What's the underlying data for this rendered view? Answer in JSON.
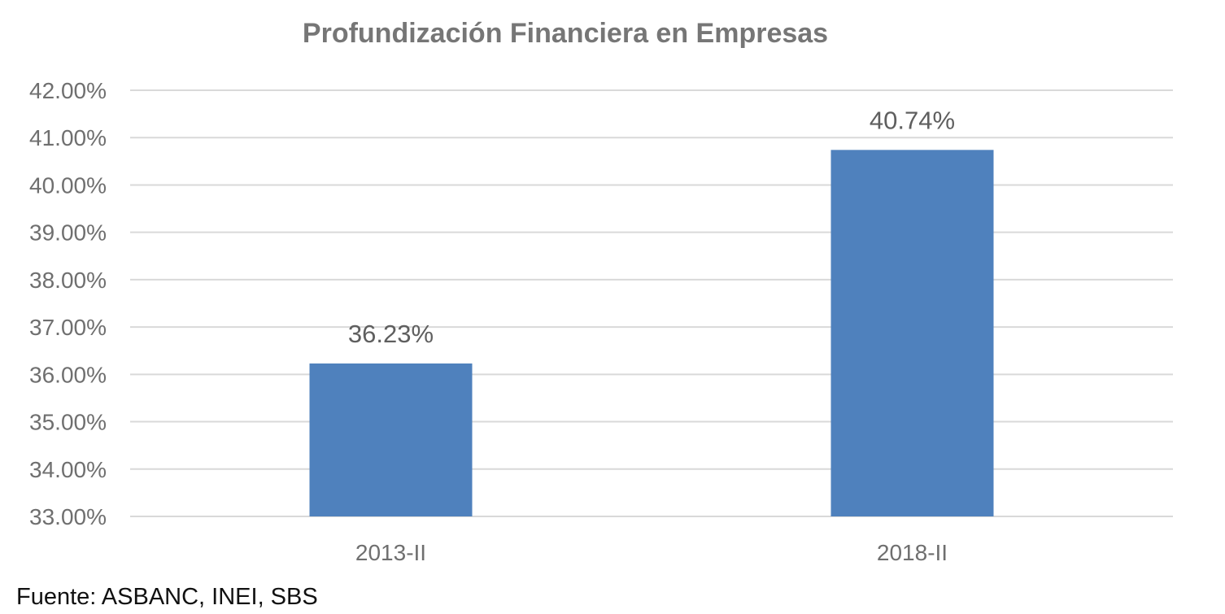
{
  "chart_data": {
    "type": "bar",
    "title": "Profundización Financiera en Empresas",
    "categories": [
      "2013-II",
      "2018-II"
    ],
    "values": [
      36.23,
      40.74
    ],
    "data_labels": [
      "36.23%",
      "40.74%"
    ],
    "ylim": [
      33,
      42
    ],
    "yticks": [
      33,
      34,
      35,
      36,
      37,
      38,
      39,
      40,
      41,
      42
    ],
    "ytick_labels": [
      "33.00%",
      "34.00%",
      "35.00%",
      "36.00%",
      "37.00%",
      "38.00%",
      "39.00%",
      "40.00%",
      "41.00%",
      "42.00%"
    ],
    "xlabel": "",
    "ylabel": "",
    "grid": true,
    "legend": "none",
    "colors": {
      "bar": "#4f81bd",
      "grid": "#d9d9d9",
      "text": "#6f6f6f",
      "title": "#767676"
    }
  },
  "source_text": "Fuente: ASBANC, INEI, SBS"
}
